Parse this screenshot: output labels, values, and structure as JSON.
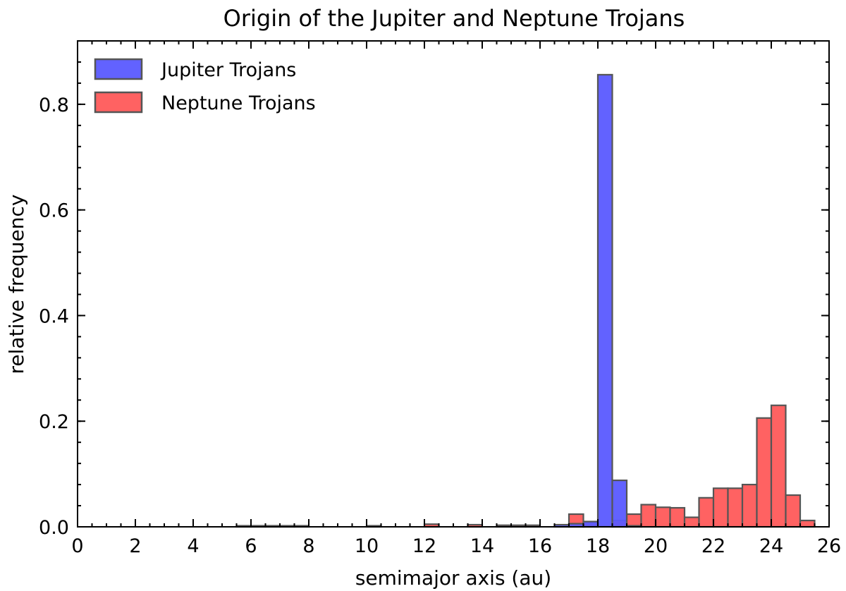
{
  "chart_data": {
    "type": "bar",
    "title": "Origin of the Jupiter and Neptune Trojans",
    "xlabel": "semimajor axis (au)",
    "ylabel": "relative frequency",
    "xlim": [
      0,
      26
    ],
    "ylim": [
      0,
      0.92
    ],
    "xticks": [
      0,
      2,
      4,
      6,
      8,
      10,
      12,
      14,
      16,
      18,
      20,
      22,
      24,
      26
    ],
    "yticks": [
      0.0,
      0.2,
      0.4,
      0.6,
      0.8
    ],
    "xtick_labels": [
      "0",
      "2",
      "4",
      "6",
      "8",
      "10",
      "12",
      "14",
      "16",
      "18",
      "20",
      "22",
      "24",
      "26"
    ],
    "ytick_labels": [
      "0.0",
      "0.2",
      "0.4",
      "0.6",
      "0.8"
    ],
    "bin_width": 0.5,
    "grid": false,
    "legend_position": "top-left",
    "series": [
      {
        "name": "Jupiter Trojans",
        "color": "#5a5aff",
        "bins": [
          {
            "x": 16.75,
            "y": 0.004
          },
          {
            "x": 17.25,
            "y": 0.006
          },
          {
            "x": 17.75,
            "y": 0.01
          },
          {
            "x": 18.25,
            "y": 0.856
          },
          {
            "x": 18.75,
            "y": 0.088
          },
          {
            "x": 19.25,
            "y": 0.002
          }
        ]
      },
      {
        "name": "Neptune Trojans",
        "color": "#ff5a5a",
        "bins": [
          {
            "x": 5.75,
            "y": 0.002
          },
          {
            "x": 6.25,
            "y": 0.002
          },
          {
            "x": 6.75,
            "y": 0.002
          },
          {
            "x": 7.25,
            "y": 0.002
          },
          {
            "x": 7.75,
            "y": 0.002
          },
          {
            "x": 10.25,
            "y": 0.002
          },
          {
            "x": 12.25,
            "y": 0.005
          },
          {
            "x": 13.75,
            "y": 0.004
          },
          {
            "x": 14.75,
            "y": 0.003
          },
          {
            "x": 15.25,
            "y": 0.003
          },
          {
            "x": 15.75,
            "y": 0.003
          },
          {
            "x": 17.25,
            "y": 0.024
          },
          {
            "x": 17.75,
            "y": 0.008
          },
          {
            "x": 18.75,
            "y": 0.012
          },
          {
            "x": 19.25,
            "y": 0.024
          },
          {
            "x": 19.75,
            "y": 0.042
          },
          {
            "x": 20.25,
            "y": 0.037
          },
          {
            "x": 20.75,
            "y": 0.036
          },
          {
            "x": 21.25,
            "y": 0.018
          },
          {
            "x": 21.75,
            "y": 0.055
          },
          {
            "x": 22.25,
            "y": 0.073
          },
          {
            "x": 22.75,
            "y": 0.073
          },
          {
            "x": 23.25,
            "y": 0.08
          },
          {
            "x": 23.75,
            "y": 0.206
          },
          {
            "x": 24.25,
            "y": 0.23
          },
          {
            "x": 24.75,
            "y": 0.06
          },
          {
            "x": 25.25,
            "y": 0.012
          }
        ]
      }
    ]
  }
}
